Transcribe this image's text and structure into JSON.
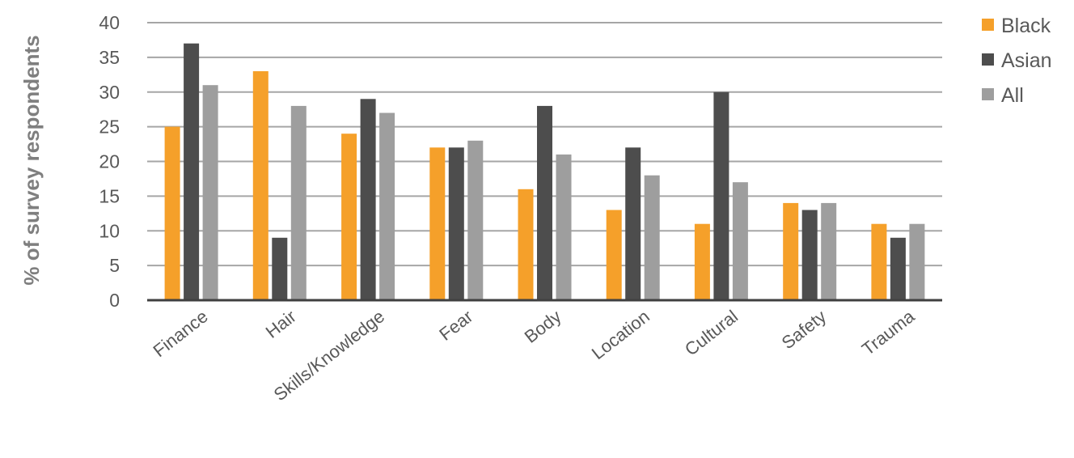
{
  "chart_data": {
    "type": "bar",
    "title": "",
    "xlabel": "",
    "ylabel": "% of survey respondents",
    "ylim": [
      0,
      40
    ],
    "yticks": [
      0,
      5,
      10,
      15,
      20,
      25,
      30,
      35,
      40
    ],
    "grid": true,
    "legend_position": "top-right",
    "categories": [
      "Finance",
      "Hair",
      "Skills/Knowledge",
      "Fear",
      "Body",
      "Location",
      "Cultural",
      "Safety",
      "Trauma"
    ],
    "series": [
      {
        "name": "Black",
        "color": "#f5a02a",
        "values": [
          25,
          33,
          24,
          22,
          16,
          13,
          11,
          14,
          11
        ]
      },
      {
        "name": "Asian",
        "color": "#4d4d4d",
        "values": [
          37,
          9,
          29,
          22,
          28,
          22,
          30,
          13,
          9
        ]
      },
      {
        "name": "All",
        "color": "#9e9e9e",
        "values": [
          31,
          28,
          27,
          23,
          21,
          18,
          17,
          14,
          11
        ]
      }
    ]
  }
}
